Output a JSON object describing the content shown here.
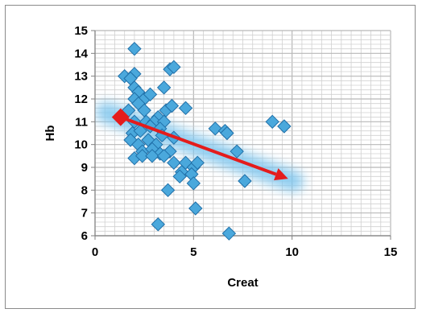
{
  "chart_data": {
    "type": "scatter",
    "title": "",
    "xlabel": "Creat",
    "ylabel": "Hb",
    "xlim": [
      0,
      15
    ],
    "ylim": [
      6,
      15
    ],
    "xticks": [
      0,
      5,
      10,
      15
    ],
    "yticks": [
      6,
      7,
      8,
      9,
      10,
      11,
      12,
      13,
      14,
      15
    ],
    "grid": "major and minor",
    "legend": "none",
    "marker": "diamond",
    "colors": {
      "marker_fill": "#4aa8dc",
      "marker_stroke": "#1f6fa8",
      "grid_major": "#b8b8b8",
      "grid_minor": "#d0d0d0",
      "arrow": "#e41c1c",
      "glow": "#7fc6ee"
    },
    "series": [
      {
        "points": [
          [
            2.0,
            14.2
          ],
          [
            1.5,
            13.0
          ],
          [
            2.0,
            13.1
          ],
          [
            1.8,
            12.9
          ],
          [
            2.0,
            12.5
          ],
          [
            2.2,
            12.3
          ],
          [
            2.0,
            12.0
          ],
          [
            2.5,
            12.0
          ],
          [
            2.2,
            11.8
          ],
          [
            2.8,
            12.2
          ],
          [
            3.5,
            12.5
          ],
          [
            3.8,
            13.3
          ],
          [
            4.0,
            13.4
          ],
          [
            1.7,
            11.5
          ],
          [
            2.5,
            11.5
          ],
          [
            3.2,
            11.2
          ],
          [
            3.6,
            11.5
          ],
          [
            3.9,
            11.7
          ],
          [
            4.6,
            11.6
          ],
          [
            2.0,
            11.0
          ],
          [
            2.6,
            11.0
          ],
          [
            3.0,
            11.0
          ],
          [
            3.5,
            11.0
          ],
          [
            1.9,
            10.5
          ],
          [
            2.3,
            10.6
          ],
          [
            2.8,
            10.8
          ],
          [
            3.3,
            10.7
          ],
          [
            1.8,
            10.2
          ],
          [
            2.2,
            10.0
          ],
          [
            2.7,
            10.2
          ],
          [
            3.1,
            10.0
          ],
          [
            3.4,
            10.4
          ],
          [
            4.0,
            10.3
          ],
          [
            2.4,
            9.7
          ],
          [
            2.9,
            9.8
          ],
          [
            3.3,
            9.6
          ],
          [
            3.8,
            9.7
          ],
          [
            2.0,
            9.4
          ],
          [
            2.4,
            9.5
          ],
          [
            2.9,
            9.5
          ],
          [
            3.5,
            9.5
          ],
          [
            4.0,
            9.2
          ],
          [
            4.6,
            9.2
          ],
          [
            5.0,
            9.0
          ],
          [
            5.2,
            9.2
          ],
          [
            4.4,
            8.8
          ],
          [
            4.9,
            8.7
          ],
          [
            4.3,
            8.6
          ],
          [
            5.0,
            8.3
          ],
          [
            3.7,
            8.0
          ],
          [
            5.1,
            7.2
          ],
          [
            3.2,
            6.5
          ],
          [
            6.8,
            6.1
          ],
          [
            6.1,
            10.7
          ],
          [
            6.6,
            10.6
          ],
          [
            6.7,
            10.5
          ],
          [
            7.2,
            9.7
          ],
          [
            7.6,
            8.4
          ],
          [
            9.0,
            11.0
          ],
          [
            9.6,
            10.8
          ]
        ]
      }
    ],
    "annotations": {
      "trend_arrow": {
        "from": [
          1.3,
          11.2
        ],
        "to": [
          9.8,
          8.5
        ]
      }
    }
  }
}
